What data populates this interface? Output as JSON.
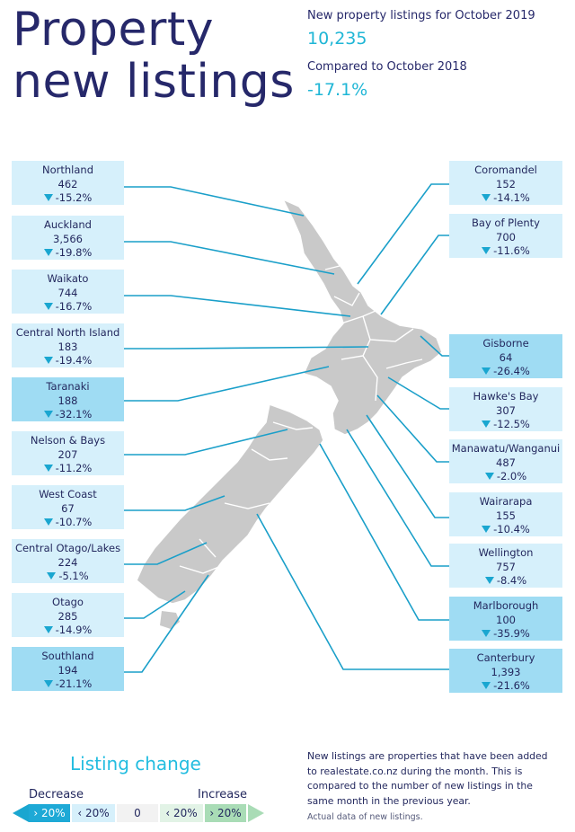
{
  "title_line1": "Property",
  "title_line2": "new listings",
  "summary": {
    "label1": "New property listings for October 2019",
    "value1": "10,235",
    "label2": "Compared to October 2018",
    "value2": "-17.1%"
  },
  "regions_left": [
    {
      "name": "Northland",
      "value": "462",
      "change": "-15.2%",
      "dark": false
    },
    {
      "name": "Auckland",
      "value": "3,566",
      "change": "-19.8%",
      "dark": false
    },
    {
      "name": "Waikato",
      "value": "744",
      "change": "-16.7%",
      "dark": false
    },
    {
      "name": "Central North Island",
      "value": "183",
      "change": "-19.4%",
      "dark": false
    },
    {
      "name": "Taranaki",
      "value": "188",
      "change": "-32.1%",
      "dark": true
    },
    {
      "name": "Nelson & Bays",
      "value": "207",
      "change": "-11.2%",
      "dark": false
    },
    {
      "name": "West Coast",
      "value": "67",
      "change": "-10.7%",
      "dark": false
    },
    {
      "name": "Central Otago/Lakes",
      "value": "224",
      "change": "-5.1%",
      "dark": false
    },
    {
      "name": "Otago",
      "value": "285",
      "change": "-14.9%",
      "dark": false
    },
    {
      "name": "Southland",
      "value": "194",
      "change": "-21.1%",
      "dark": true
    }
  ],
  "regions_right": [
    {
      "name": "Coromandel",
      "value": "152",
      "change": "-14.1%",
      "dark": false
    },
    {
      "name": "Bay of Plenty",
      "value": "700",
      "change": "-11.6%",
      "dark": false
    },
    {
      "name": "Gisborne",
      "value": "64",
      "change": "-26.4%",
      "dark": true
    },
    {
      "name": "Hawke's Bay",
      "value": "307",
      "change": "-12.5%",
      "dark": false
    },
    {
      "name": "Manawatu/Wanganui",
      "value": "487",
      "change": "-2.0%",
      "dark": false
    },
    {
      "name": "Wairarapa",
      "value": "155",
      "change": "-10.4%",
      "dark": false
    },
    {
      "name": "Wellington",
      "value": "757",
      "change": "-8.4%",
      "dark": false
    },
    {
      "name": "Marlborough",
      "value": "100",
      "change": "-35.9%",
      "dark": true
    },
    {
      "name": "Canterbury",
      "value": "1,393",
      "change": "-21.6%",
      "dark": true
    }
  ],
  "legend": {
    "title": "Listing change",
    "decrease": "Decrease",
    "increase": "Increase",
    "scale": [
      "› 20%",
      "‹ 20%",
      "0",
      "‹ 20%",
      "› 20%"
    ]
  },
  "note": "New listings are properties that have been added to realestate.co.nz during the month. This is compared to the number of new listings in the same month in the previous year.",
  "note2": "Actual data of new listings.",
  "colors": {
    "title": "#26286a",
    "accent": "#1fb6d6",
    "box_light": "#d6f0fb",
    "box_dark": "#9fdcf3",
    "line": "#1a9fc9",
    "map": "#c9c9c9"
  }
}
